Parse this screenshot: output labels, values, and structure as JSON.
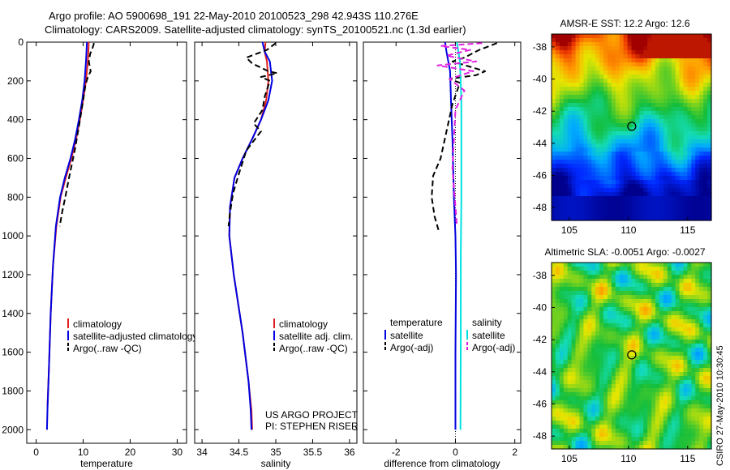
{
  "header": {
    "line1": "Argo profile: AO 5900698_191 22-May-2010 20100523_298 42.943S 110.276E",
    "line2": "Climatology: CARS2009. Satellite-adjusted climatology: synTS_20100521.nc (1.3d earlier)"
  },
  "credit": "CSIRO 27-May-2010 10:30:45",
  "colors": {
    "red": "#e02020",
    "blue": "#0000e0",
    "black": "#000000",
    "cyan": "#00e0e0",
    "magenta": "#e020e0"
  },
  "chart_data": [
    {
      "type": "line",
      "id": "temperature",
      "xlabel": "temperature",
      "ylabel": "",
      "xlim": [
        -2,
        32
      ],
      "ylim": [
        2070,
        0
      ],
      "xticks": [
        0,
        10,
        20,
        30
      ],
      "yticks": [
        0,
        200,
        400,
        600,
        800,
        1000,
        1200,
        1400,
        1600,
        1800,
        2000
      ],
      "legend": {
        "position": "lower-right",
        "entries": [
          "climatology",
          "satellite-adjusted climatology",
          "Argo(..raw -QC)"
        ]
      },
      "series": [
        {
          "name": "climatology",
          "color": "red",
          "style": "solid",
          "x": [
            11.2,
            11.0,
            10.6,
            10.0,
            9.3,
            8.5,
            7.5,
            6.3,
            5.2,
            4.3,
            3.6,
            3.1,
            2.7,
            2.4
          ],
          "y": [
            0,
            100,
            200,
            300,
            400,
            500,
            600,
            700,
            800,
            950,
            1150,
            1400,
            1700,
            1880
          ]
        },
        {
          "name": "satellite-adjusted climatology",
          "color": "blue",
          "style": "solid",
          "x": [
            10.8,
            10.6,
            10.3,
            9.8,
            9.1,
            8.3,
            7.3,
            6.1,
            5.1,
            4.2,
            3.6,
            3.1,
            2.7,
            2.4,
            2.3
          ],
          "y": [
            0,
            100,
            200,
            300,
            400,
            500,
            600,
            700,
            800,
            950,
            1150,
            1400,
            1700,
            1900,
            2000
          ]
        },
        {
          "name": "Argo(..raw -QC)",
          "color": "black",
          "style": "dashed",
          "x": [
            12.3,
            12.0,
            11.5,
            11.2,
            11.6,
            11.0,
            10.5,
            10.0,
            9.2,
            8.2,
            7.0,
            6.2,
            5.5,
            5.0
          ],
          "y": [
            5,
            30,
            60,
            100,
            150,
            180,
            220,
            300,
            420,
            560,
            700,
            800,
            880,
            950
          ]
        }
      ]
    },
    {
      "type": "line",
      "id": "salinity",
      "xlabel": "salinity",
      "ylabel": "",
      "xlim": [
        33.9,
        36.1
      ],
      "ylim": [
        2070,
        0
      ],
      "xticks": [
        34,
        34.5,
        35,
        35.5,
        36
      ],
      "yticks": [
        0,
        200,
        400,
        600,
        800,
        1000,
        1200,
        1400,
        1600,
        1800,
        2000
      ],
      "annotation": [
        "US ARGO PROJECT",
        "PI: STEPHEN RISER"
      ],
      "legend": {
        "position": "lower-right",
        "entries": [
          "climatology",
          "satellite adj. clim.",
          "Argo(..raw -QC)"
        ]
      },
      "series": [
        {
          "name": "climatology",
          "color": "red",
          "style": "solid",
          "x": [
            34.86,
            34.85,
            34.88,
            34.9,
            34.87,
            34.8,
            34.68,
            34.55,
            34.44,
            34.38,
            34.37,
            34.43,
            34.55,
            34.63,
            34.67,
            34.68
          ],
          "y": [
            0,
            50,
            100,
            200,
            300,
            400,
            500,
            600,
            700,
            850,
            1000,
            1200,
            1500,
            1750,
            1900,
            2000
          ]
        },
        {
          "name": "satellite adj. clim.",
          "color": "blue",
          "style": "solid",
          "x": [
            34.82,
            34.85,
            34.92,
            34.95,
            34.9,
            34.8,
            34.68,
            34.55,
            34.44,
            34.38,
            34.37,
            34.43,
            34.55,
            34.63,
            34.66,
            34.67
          ],
          "y": [
            0,
            50,
            100,
            200,
            300,
            400,
            500,
            600,
            700,
            850,
            1000,
            1200,
            1500,
            1750,
            1900,
            2000
          ]
        },
        {
          "name": "Argo(..raw -QC)",
          "color": "black",
          "style": "dashed",
          "x": [
            35.0,
            34.88,
            34.6,
            34.68,
            34.9,
            35.02,
            34.8,
            34.92,
            34.85,
            34.82,
            34.7,
            34.8,
            34.6,
            34.5,
            34.42,
            34.38,
            34.36
          ],
          "y": [
            5,
            40,
            80,
            110,
            150,
            160,
            180,
            200,
            280,
            350,
            420,
            460,
            560,
            680,
            780,
            880,
            950
          ]
        }
      ]
    },
    {
      "type": "line",
      "id": "difference",
      "xlabel": "difference from climatology",
      "ylabel": "",
      "xlim": [
        -3.1,
        2.2
      ],
      "ylim": [
        2070,
        0
      ],
      "xticks": [
        -2,
        0,
        2
      ],
      "yticks": [
        0,
        200,
        400,
        600,
        800,
        1000,
        1200,
        1400,
        1600,
        1800,
        2000
      ],
      "legend": {
        "position": "lower-center",
        "columns": [
          {
            "heading": "temperature",
            "entries": [
              "satellite",
              "Argo(-adj)"
            ]
          },
          {
            "heading": "salinity",
            "entries": [
              "satellite",
              "Argo(-adj)"
            ]
          }
        ]
      },
      "series": [
        {
          "name": "temperature satellite",
          "color": "blue",
          "style": "solid",
          "x": [
            -0.35,
            -0.3,
            -0.18,
            -0.15,
            -0.1,
            -0.05,
            0.0,
            0.02,
            0.0,
            0.0
          ],
          "y": [
            0,
            50,
            150,
            300,
            500,
            800,
            1000,
            1200,
            1600,
            2000
          ]
        },
        {
          "name": "temperature Argo(-adj)",
          "color": "black",
          "style": "dashed",
          "x": [
            1.4,
            0.8,
            0.3,
            -0.1,
            1.0,
            0.7,
            -0.2,
            0.15,
            -0.1,
            -0.5,
            -0.75,
            -0.8,
            -0.7,
            -0.55
          ],
          "y": [
            5,
            40,
            80,
            100,
            150,
            170,
            190,
            210,
            320,
            600,
            690,
            800,
            900,
            980
          ]
        },
        {
          "name": "salinity satellite",
          "color": "cyan",
          "style": "solid",
          "x": [
            0.05,
            0.15,
            0.2,
            0.2,
            0.2,
            0.18,
            0.18,
            0.17
          ],
          "y": [
            0,
            100,
            300,
            500,
            800,
            1100,
            1500,
            2000
          ]
        },
        {
          "name": "salinity Argo(-adj)",
          "color": "magenta",
          "style": "dashed",
          "x": [
            0.9,
            -0.5,
            0.5,
            -0.3,
            0.7,
            -0.6,
            0.6,
            -0.2,
            0.3,
            0.0,
            -0.05,
            -0.1,
            -0.05,
            0.0,
            0.05
          ],
          "y": [
            5,
            20,
            40,
            70,
            100,
            120,
            150,
            190,
            250,
            350,
            500,
            650,
            750,
            850,
            950
          ]
        }
      ]
    },
    {
      "type": "heatmap",
      "id": "sst",
      "title": "AMSR-E SST: 12.2 Argo: 12.6",
      "xlim": [
        103.5,
        117
      ],
      "ylim": [
        -48.8,
        -37.2
      ],
      "xticks": [
        105,
        110,
        115
      ],
      "yticks": [
        -38,
        -40,
        -42,
        -44,
        -46,
        -48
      ],
      "marker": {
        "lon": 110.276,
        "lat": -42.943
      }
    },
    {
      "type": "heatmap",
      "id": "sla",
      "title": "Altimetric SLA: -0.0051 Argo: -0.0027",
      "xlim": [
        103.5,
        117
      ],
      "ylim": [
        -48.8,
        -37.2
      ],
      "xticks": [
        105,
        110,
        115
      ],
      "yticks": [
        -38,
        -40,
        -42,
        -44,
        -46,
        -48
      ],
      "marker": {
        "lon": 110.276,
        "lat": -42.943
      }
    }
  ]
}
